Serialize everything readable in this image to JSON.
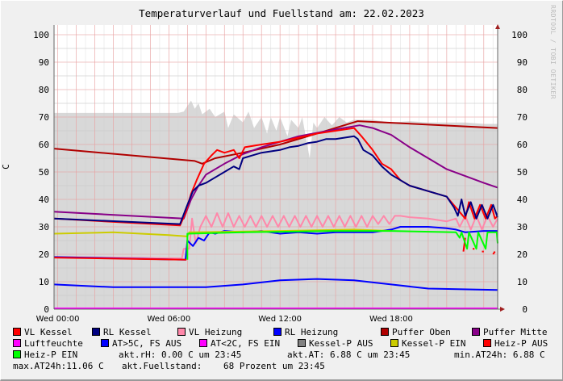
{
  "chart_data": {
    "type": "line",
    "title": "Temperaturverlauf und Fuellstand am: 22.02.2023",
    "ylabel": "C",
    "watermark": "RRDTOOL / TOBI OETIKER",
    "ylim": [
      0,
      100
    ],
    "xlim_hours": [
      -0.2,
      23.75
    ],
    "yticks": [
      0,
      10,
      20,
      30,
      40,
      50,
      60,
      70,
      80,
      90,
      100
    ],
    "xticks": [
      {
        "h": 0,
        "label": "Wed 00:00"
      },
      {
        "h": 6,
        "label": "Wed 06:00"
      },
      {
        "h": 12,
        "label": "Wed 12:00"
      },
      {
        "h": 18,
        "label": "Wed 18:00"
      }
    ],
    "grid": true,
    "series": [
      {
        "name": "Kessel-P AUS",
        "color": "#808080",
        "fill": "#d8d8d8",
        "kind": "area",
        "points": [
          [
            -0.2,
            71.5
          ],
          [
            6.5,
            71.5
          ],
          [
            6.8,
            72
          ],
          [
            7,
            74
          ],
          [
            7.2,
            76
          ],
          [
            7.4,
            73
          ],
          [
            7.6,
            75
          ],
          [
            7.8,
            71
          ],
          [
            8.2,
            73
          ],
          [
            8.5,
            70
          ],
          [
            9,
            72
          ],
          [
            9.2,
            66
          ],
          [
            9.5,
            71
          ],
          [
            10,
            68
          ],
          [
            10.3,
            72
          ],
          [
            10.6,
            66
          ],
          [
            11,
            70
          ],
          [
            11.3,
            64
          ],
          [
            11.5,
            70
          ],
          [
            11.8,
            65
          ],
          [
            12,
            70
          ],
          [
            12.4,
            63
          ],
          [
            12.6,
            69
          ],
          [
            13,
            66
          ],
          [
            13.2,
            70
          ],
          [
            13.6,
            55
          ],
          [
            13.8,
            68
          ],
          [
            14,
            66
          ],
          [
            14.4,
            70
          ],
          [
            14.8,
            67
          ],
          [
            15.2,
            70
          ],
          [
            15.6,
            68
          ],
          [
            16,
            69
          ],
          [
            17,
            69
          ],
          [
            18,
            68
          ],
          [
            19,
            68.5
          ],
          [
            20,
            68
          ],
          [
            21,
            68
          ],
          [
            22,
            68
          ],
          [
            23,
            67.5
          ],
          [
            23.75,
            67.5
          ]
        ]
      },
      {
        "name": "Puffer Oben",
        "color": "#b00000",
        "points": [
          [
            -0.2,
            58.5
          ],
          [
            7.4,
            54
          ],
          [
            7.8,
            53
          ],
          [
            8.5,
            55
          ],
          [
            10,
            57
          ],
          [
            12,
            60
          ],
          [
            14,
            64
          ],
          [
            16.2,
            68.5
          ],
          [
            23.75,
            66
          ]
        ]
      },
      {
        "name": "Puffer Mitte",
        "color": "#880088",
        "points": [
          [
            -0.2,
            35.5
          ],
          [
            6.8,
            33
          ],
          [
            7.2,
            40
          ],
          [
            7.6,
            45
          ],
          [
            8,
            49
          ],
          [
            9,
            53
          ],
          [
            10,
            56.5
          ],
          [
            11,
            59
          ],
          [
            13,
            63
          ],
          [
            15,
            65.5
          ],
          [
            16.3,
            67
          ],
          [
            17,
            66
          ],
          [
            18,
            63.5
          ],
          [
            19,
            59
          ],
          [
            20,
            55
          ],
          [
            21,
            51
          ],
          [
            22,
            48.5
          ],
          [
            23,
            46
          ],
          [
            23.75,
            44.3
          ]
        ]
      },
      {
        "name": "VL Heizung",
        "color": "#ff88aa",
        "points": [
          [
            -0.2,
            19
          ],
          [
            6.7,
            18.5
          ],
          [
            6.8,
            22
          ],
          [
            7.1,
            22
          ],
          [
            7.25,
            33
          ],
          [
            7.45,
            24
          ],
          [
            7.7,
            30
          ],
          [
            8,
            34
          ],
          [
            8.3,
            30
          ],
          [
            8.6,
            35
          ],
          [
            8.9,
            30
          ],
          [
            9.2,
            35
          ],
          [
            9.5,
            30
          ],
          [
            9.8,
            34
          ],
          [
            10.1,
            30
          ],
          [
            10.4,
            34
          ],
          [
            10.7,
            30
          ],
          [
            11,
            34
          ],
          [
            11.3,
            30
          ],
          [
            11.6,
            34
          ],
          [
            11.9,
            30
          ],
          [
            12.2,
            34
          ],
          [
            12.5,
            30
          ],
          [
            12.8,
            34
          ],
          [
            13.1,
            30
          ],
          [
            13.4,
            34
          ],
          [
            13.7,
            30
          ],
          [
            14,
            34
          ],
          [
            14.3,
            30
          ],
          [
            14.6,
            34
          ],
          [
            14.9,
            30
          ],
          [
            15.2,
            34
          ],
          [
            15.5,
            30
          ],
          [
            15.8,
            34
          ],
          [
            16.1,
            30
          ],
          [
            16.4,
            34
          ],
          [
            16.7,
            30
          ],
          [
            17,
            34
          ],
          [
            17.3,
            31
          ],
          [
            17.6,
            34
          ],
          [
            17.9,
            31
          ],
          [
            18.2,
            34
          ],
          [
            18.5,
            34
          ],
          [
            19,
            33.5
          ],
          [
            20,
            33
          ],
          [
            21,
            32
          ],
          [
            21.5,
            33
          ],
          [
            21.7,
            30
          ],
          [
            22,
            34
          ],
          [
            22.3,
            29
          ],
          [
            22.6,
            34
          ],
          [
            22.9,
            29
          ],
          [
            23.2,
            34
          ],
          [
            23.5,
            30
          ],
          [
            23.75,
            33
          ]
        ]
      },
      {
        "name": "RL Heizung",
        "color": "#0000ff",
        "points": [
          [
            -0.2,
            19
          ],
          [
            6.9,
            18
          ],
          [
            7,
            25
          ],
          [
            7.3,
            23
          ],
          [
            7.6,
            26
          ],
          [
            7.9,
            25
          ],
          [
            8.2,
            28
          ],
          [
            8.5,
            27.5
          ],
          [
            9,
            28.5
          ],
          [
            10,
            28
          ],
          [
            11,
            28.5
          ],
          [
            12,
            27.5
          ],
          [
            13,
            28
          ],
          [
            14,
            27.5
          ],
          [
            15,
            28
          ],
          [
            16,
            28
          ],
          [
            17,
            28
          ],
          [
            18,
            29
          ],
          [
            18.5,
            30
          ],
          [
            20,
            30
          ],
          [
            21,
            29.5
          ],
          [
            21.5,
            29
          ],
          [
            22,
            28
          ],
          [
            23,
            28.5
          ],
          [
            23.75,
            28.5
          ]
        ]
      },
      {
        "name": "Kessel-P EIN",
        "color": "#cccc00",
        "points": [
          [
            -0.2,
            27.5
          ],
          [
            3,
            28
          ],
          [
            6,
            27
          ],
          [
            7,
            26.5
          ],
          [
            7.1,
            28
          ],
          [
            12,
            28.5
          ],
          [
            16,
            29
          ],
          [
            18,
            28.5
          ]
        ]
      },
      {
        "name": "Heiz-P AUS",
        "color": "#ff0000",
        "points": [
          [
            -0.2,
            18.8
          ],
          [
            6.95,
            18
          ],
          null,
          [
            21.9,
            21
          ],
          [
            22.0,
            26
          ],
          null,
          [
            22.4,
            22
          ],
          [
            22.5,
            22
          ],
          null,
          [
            22.9,
            21
          ],
          [
            23.0,
            21
          ],
          null,
          [
            23.5,
            20
          ],
          [
            23.6,
            21
          ]
        ]
      },
      {
        "name": "Heiz-P EIN",
        "color": "#00ff00",
        "points": [
          [
            7.0,
            18
          ],
          [
            7.0,
            27.5
          ],
          [
            10,
            28
          ],
          [
            15,
            28.5
          ],
          [
            18,
            28.5
          ],
          [
            21.5,
            28
          ],
          [
            21.7,
            26
          ],
          [
            21.8,
            28
          ],
          [
            22.1,
            22
          ],
          [
            22.2,
            28
          ],
          [
            22.6,
            22
          ],
          [
            22.7,
            28
          ],
          [
            23.1,
            22
          ],
          [
            23.2,
            28
          ],
          [
            23.7,
            28
          ],
          [
            23.75,
            24
          ]
        ]
      },
      {
        "name": "VL Kessel",
        "color": "#ff0000",
        "points": [
          [
            -0.2,
            33
          ],
          [
            6.6,
            30.5
          ],
          [
            6.9,
            35
          ],
          [
            7.2,
            42
          ],
          [
            7.5,
            47
          ],
          [
            7.9,
            53
          ],
          [
            8.3,
            56
          ],
          [
            8.6,
            58
          ],
          [
            9,
            57
          ],
          [
            9.5,
            58
          ],
          [
            9.8,
            55
          ],
          [
            10.1,
            59
          ],
          [
            11,
            60
          ],
          [
            12,
            61
          ],
          [
            13,
            62.5
          ],
          [
            14,
            64
          ],
          [
            15,
            65
          ],
          [
            16,
            66
          ],
          [
            16.4,
            63
          ],
          [
            17,
            58
          ],
          [
            17.5,
            53
          ],
          [
            18,
            51
          ],
          [
            18.5,
            47
          ],
          [
            19,
            45
          ],
          [
            20,
            43
          ],
          [
            21,
            41
          ],
          [
            21.5,
            37
          ],
          [
            22,
            33
          ],
          [
            22.2,
            39
          ],
          [
            22.5,
            33
          ],
          [
            22.8,
            38
          ],
          [
            23.1,
            33
          ],
          [
            23.4,
            38
          ],
          [
            23.6,
            33
          ],
          [
            23.75,
            34
          ]
        ]
      },
      {
        "name": "RL Kessel",
        "color": "#000080",
        "points": [
          [
            -0.2,
            33
          ],
          [
            6.6,
            31
          ],
          [
            7,
            38
          ],
          [
            7.3,
            43
          ],
          [
            7.6,
            45
          ],
          [
            8,
            46
          ],
          [
            8.5,
            48
          ],
          [
            9,
            50
          ],
          [
            9.5,
            52
          ],
          [
            9.8,
            51
          ],
          [
            10,
            55
          ],
          [
            10.5,
            56
          ],
          [
            11,
            57
          ],
          [
            11.5,
            57.5
          ],
          [
            12,
            58
          ],
          [
            12.5,
            59
          ],
          [
            13,
            59.5
          ],
          [
            13.5,
            60.5
          ],
          [
            14,
            61
          ],
          [
            14.5,
            62
          ],
          [
            15,
            62
          ],
          [
            15.5,
            62.5
          ],
          [
            16,
            63
          ],
          [
            16.2,
            62
          ],
          [
            16.5,
            58
          ],
          [
            17,
            56
          ],
          [
            17.5,
            52
          ],
          [
            18,
            49
          ],
          [
            18.5,
            47
          ],
          [
            19,
            45
          ],
          [
            20,
            43
          ],
          [
            21,
            41
          ],
          [
            21.4,
            37
          ],
          [
            21.6,
            34
          ],
          [
            21.8,
            40
          ],
          [
            22,
            34
          ],
          [
            22.3,
            39
          ],
          [
            22.6,
            33
          ],
          [
            22.9,
            38
          ],
          [
            23.2,
            33
          ],
          [
            23.5,
            38
          ],
          [
            23.75,
            33.5
          ]
        ]
      },
      {
        "name": "AT>5C, FS AUS",
        "color": "#0000ff",
        "points": [
          [
            -0.2,
            9
          ],
          [
            3,
            8
          ],
          [
            6,
            8
          ],
          [
            8,
            8
          ],
          [
            10,
            9
          ],
          [
            12,
            10.5
          ],
          [
            14,
            11
          ],
          [
            16,
            10.5
          ],
          [
            18,
            9
          ],
          [
            20,
            7.5
          ],
          [
            23.75,
            7
          ]
        ]
      },
      {
        "name": "Luftfeuchte",
        "color": "#ff00ff",
        "points": [
          [
            -0.2,
            0.3
          ],
          [
            23.75,
            0.3
          ]
        ]
      }
    ]
  },
  "legend": {
    "items": [
      {
        "label": "VL Kessel",
        "color": "#ff0000"
      },
      {
        "label": "RL Kessel",
        "color": "#000080"
      },
      {
        "label": "VL Heizung",
        "color": "#ff88aa"
      },
      {
        "label": "RL Heizung",
        "color": "#0000ff"
      },
      {
        "label": "Puffer Oben",
        "color": "#b00000"
      },
      {
        "label": "Puffer Mitte",
        "color": "#880088"
      },
      {
        "label": "Luftfeuchte",
        "color": "#ff00ff"
      },
      {
        "label": "AT>5C, FS AUS",
        "color": "#0000ff"
      },
      {
        "label": "AT<2C, FS EIN",
        "color": "#ff00ff"
      },
      {
        "label": "Kessel-P AUS",
        "color": "#808080"
      },
      {
        "label": "Kessel-P EIN",
        "color": "#cccc00"
      },
      {
        "label": "Heiz-P AUS",
        "color": "#ff0000"
      },
      {
        "label": "Heiz-P EIN",
        "color": "#00ff00"
      }
    ],
    "stats": {
      "rh": "akt.rH: 0.00 C um 23:45",
      "at": "akt.AT: 6.88 C um 23:45",
      "min": "min.AT24h: 6.88 C",
      "max": "max.AT24h:11.06 C",
      "fuell_label": "akt.Fuellstand:",
      "fuell_value": "68 Prozent um 23:45"
    }
  }
}
